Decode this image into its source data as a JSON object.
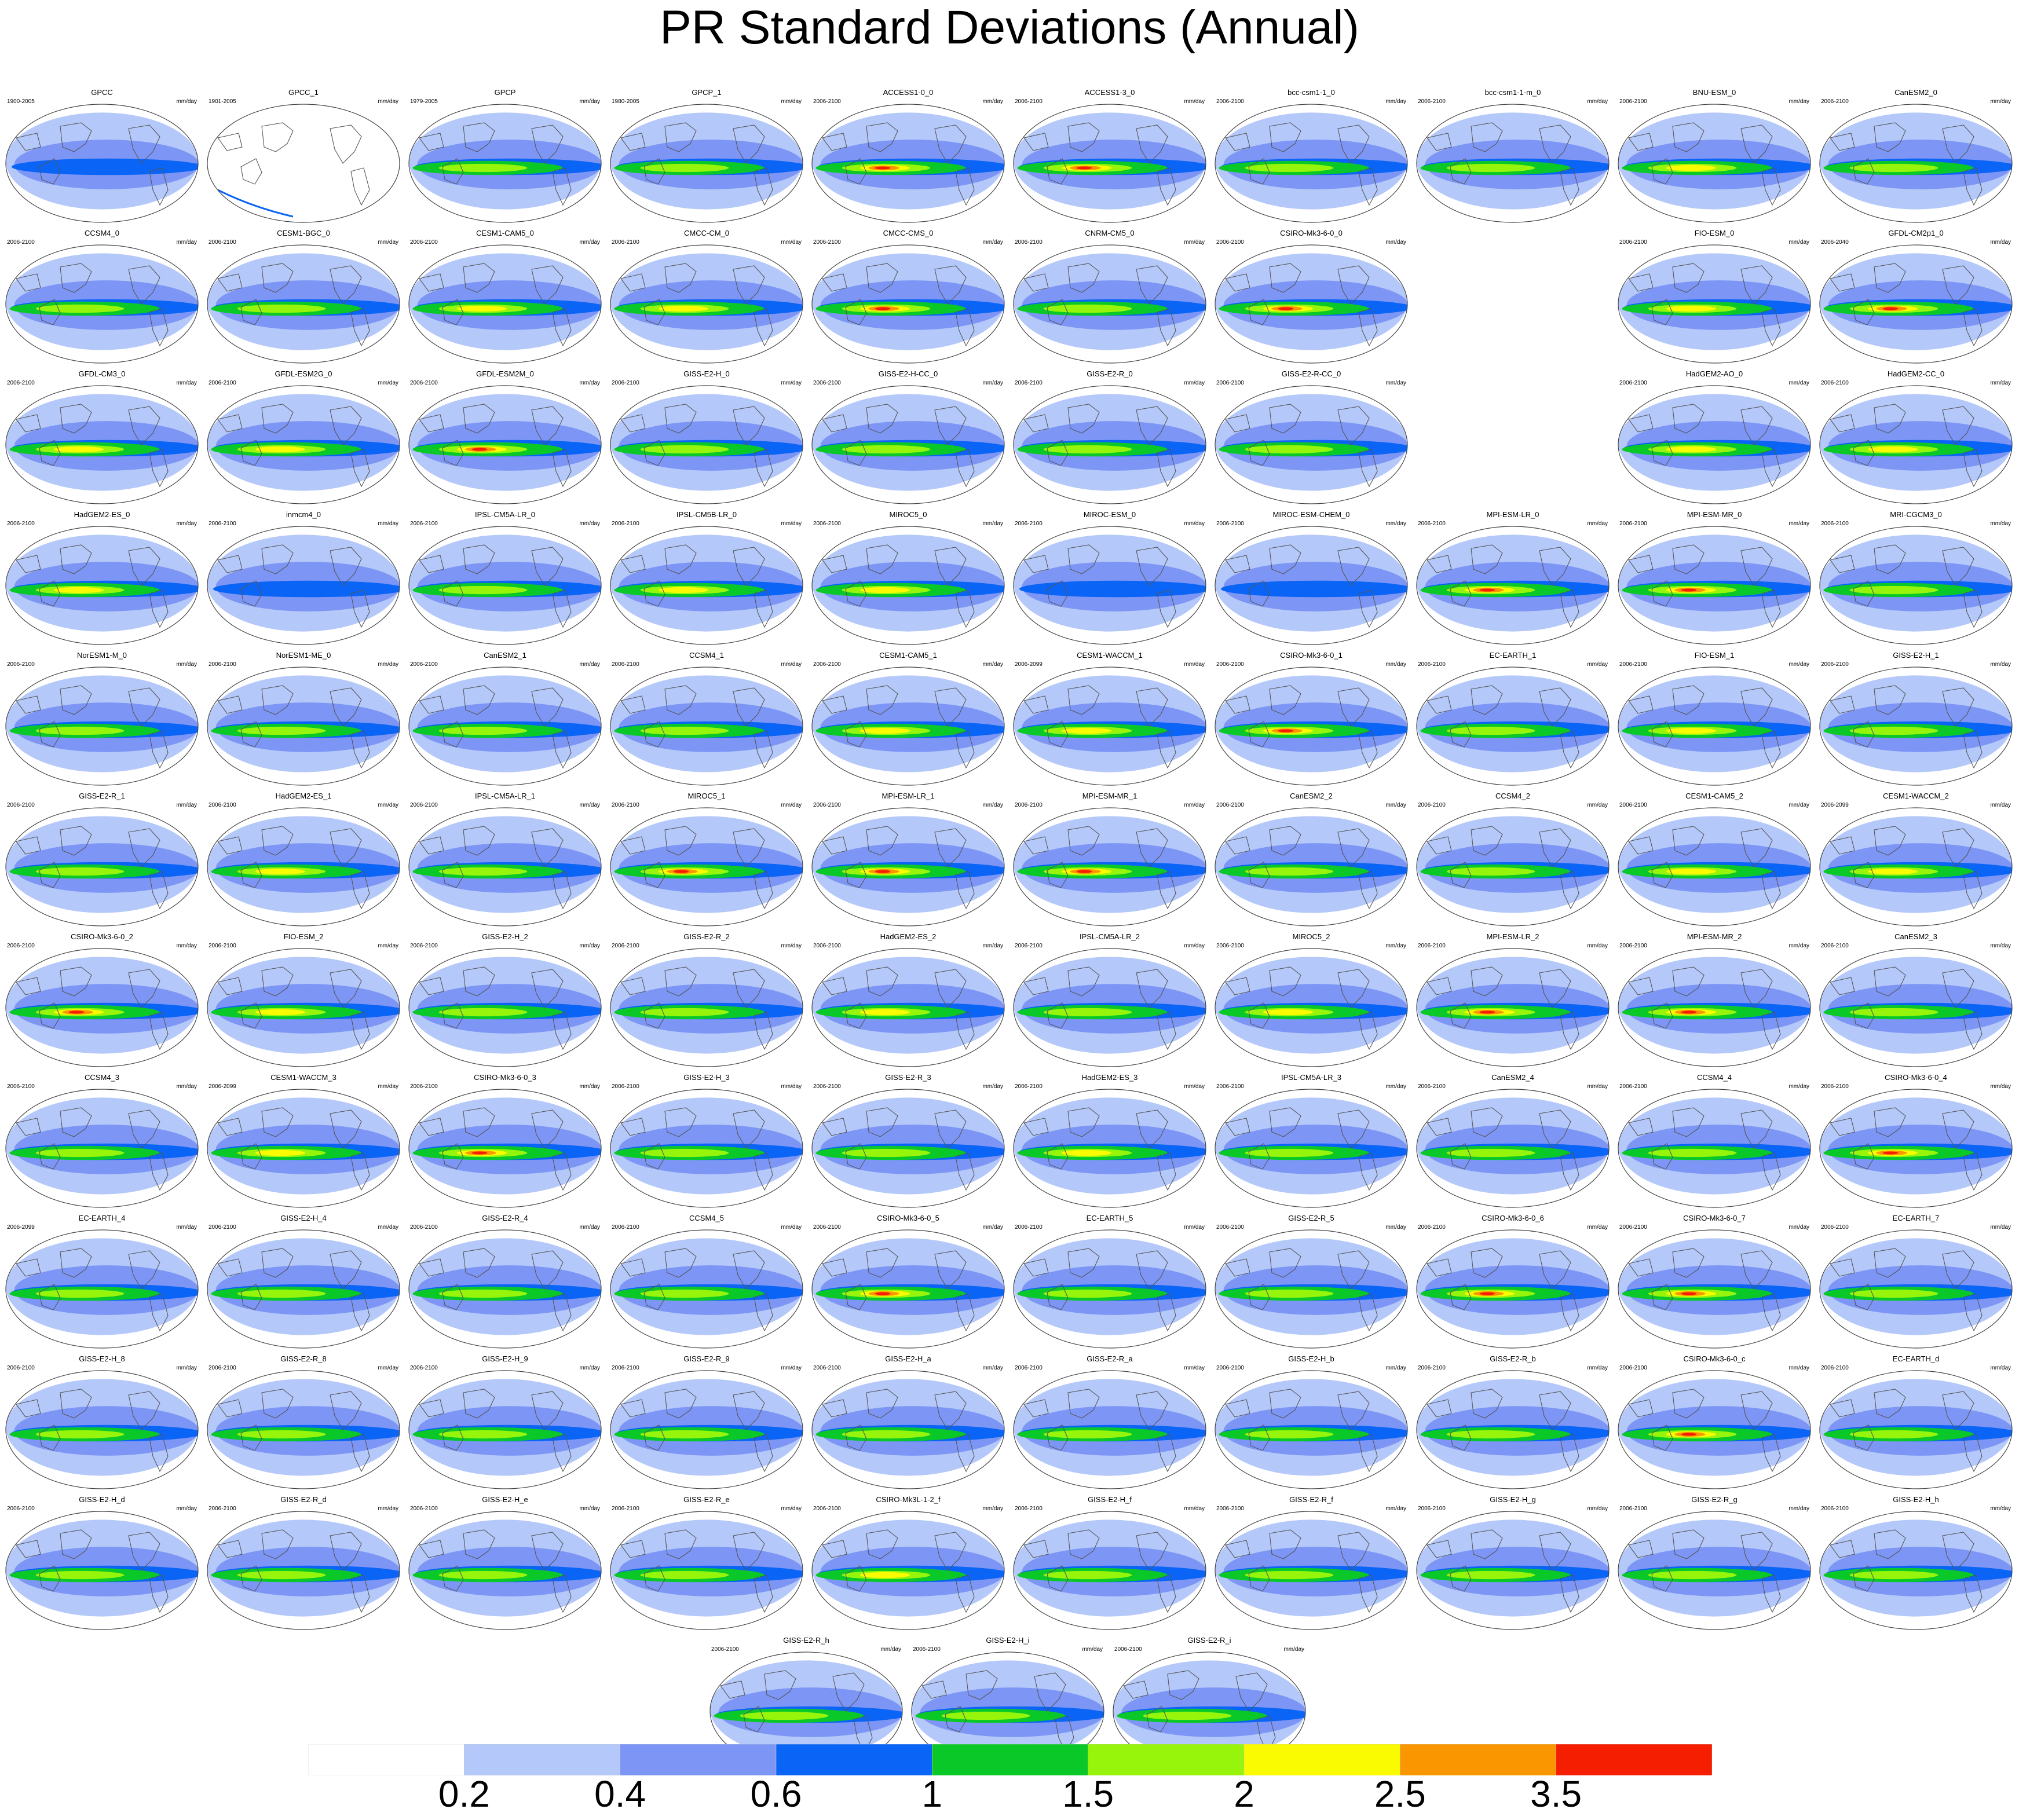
{
  "title": "PR Standard Deviations (Annual)",
  "chart_data": {
    "type": "heatmap",
    "title": "PR Standard Deviations (Annual)",
    "projection": "global robinson-style map panels centered on the Pacific",
    "units": "mm/day",
    "grid": false,
    "colorbar": {
      "orientation": "horizontal",
      "placement": "bottom",
      "tick_labels": [
        "0.2",
        "0.4",
        "0.6",
        "1",
        "1.5",
        "2",
        "2.5",
        "3.5"
      ],
      "colors": [
        "#ffffff",
        "#b4c8fa",
        "#7d96f5",
        "#0a64f5",
        "#0ac828",
        "#96f50a",
        "#fafa00",
        "#fa9600",
        "#f51e00"
      ]
    },
    "panels": [
      {
        "name": "GPCC",
        "period": "1900-2005",
        "unit": "mm/day",
        "peak": 1
      },
      {
        "name": "GPCC_1",
        "period": "1901-2005",
        "unit": "mm/day",
        "peak": 0
      },
      {
        "name": "GPCP",
        "period": "1979-2005",
        "unit": "mm/day",
        "peak": 2
      },
      {
        "name": "GPCP_1",
        "period": "1980-2005",
        "unit": "mm/day",
        "peak": 2
      },
      {
        "name": "ACCESS1-0_0",
        "period": "2006-2100",
        "unit": "mm/day",
        "peak": 4
      },
      {
        "name": "ACCESS1-3_0",
        "period": "2006-2100",
        "unit": "mm/day",
        "peak": 4
      },
      {
        "name": "bcc-csm1-1_0",
        "period": "2006-2100",
        "unit": "mm/day",
        "peak": 2
      },
      {
        "name": "bcc-csm1-1-m_0",
        "period": "2006-2100",
        "unit": "mm/day",
        "peak": 2
      },
      {
        "name": "BNU-ESM_0",
        "period": "2006-2100",
        "unit": "mm/day",
        "peak": 3
      },
      {
        "name": "CanESM2_0",
        "period": "2006-2100",
        "unit": "mm/day",
        "peak": 2
      },
      {
        "name": "CCSM4_0",
        "period": "2006-2100",
        "unit": "mm/day",
        "peak": 2
      },
      {
        "name": "CESM1-BGC_0",
        "period": "2006-2100",
        "unit": "mm/day",
        "peak": 2
      },
      {
        "name": "CESM1-CAM5_0",
        "period": "2006-2100",
        "unit": "mm/day",
        "peak": 3
      },
      {
        "name": "CMCC-CM_0",
        "period": "2006-2100",
        "unit": "mm/day",
        "peak": 3
      },
      {
        "name": "CMCC-CMS_0",
        "period": "2006-2100",
        "unit": "mm/day",
        "peak": 4
      },
      {
        "name": "CNRM-CM5_0",
        "period": "2006-2100",
        "unit": "mm/day",
        "peak": 2
      },
      {
        "name": "CSIRO-Mk3-6-0_0",
        "period": "2006-2100",
        "unit": "mm/day",
        "peak": 4
      },
      null,
      {
        "name": "FIO-ESM_0",
        "period": "2006-2100",
        "unit": "mm/day",
        "peak": 3
      },
      {
        "name": "GFDL-CM2p1_0",
        "period": "2006-2040",
        "unit": "mm/day",
        "peak": 4
      },
      {
        "name": "GFDL-CM3_0",
        "period": "2006-2100",
        "unit": "mm/day",
        "peak": 3
      },
      {
        "name": "GFDL-ESM2G_0",
        "period": "2006-2100",
        "unit": "mm/day",
        "peak": 3
      },
      {
        "name": "GFDL-ESM2M_0",
        "period": "2006-2100",
        "unit": "mm/day",
        "peak": 4
      },
      {
        "name": "GISS-E2-H_0",
        "period": "2006-2100",
        "unit": "mm/day",
        "peak": 2
      },
      {
        "name": "GISS-E2-H-CC_0",
        "period": "2006-2100",
        "unit": "mm/day",
        "peak": 2
      },
      {
        "name": "GISS-E2-R_0",
        "period": "2006-2100",
        "unit": "mm/day",
        "peak": 2
      },
      {
        "name": "GISS-E2-R-CC_0",
        "period": "2006-2100",
        "unit": "mm/day",
        "peak": 2
      },
      null,
      {
        "name": "HadGEM2-AO_0",
        "period": "2006-2100",
        "unit": "mm/day",
        "peak": 3
      },
      {
        "name": "HadGEM2-CC_0",
        "period": "2006-2100",
        "unit": "mm/day",
        "peak": 3
      },
      {
        "name": "HadGEM2-ES_0",
        "period": "2006-2100",
        "unit": "mm/day",
        "peak": 3
      },
      {
        "name": "inmcm4_0",
        "period": "2006-2100",
        "unit": "mm/day",
        "peak": 1
      },
      {
        "name": "IPSL-CM5A-LR_0",
        "period": "2006-2100",
        "unit": "mm/day",
        "peak": 2
      },
      {
        "name": "IPSL-CM5B-LR_0",
        "period": "2006-2100",
        "unit": "mm/day",
        "peak": 3
      },
      {
        "name": "MIROC5_0",
        "period": "2006-2100",
        "unit": "mm/day",
        "peak": 3
      },
      {
        "name": "MIROC-ESM_0",
        "period": "2006-2100",
        "unit": "mm/day",
        "peak": 1
      },
      {
        "name": "MIROC-ESM-CHEM_0",
        "period": "2006-2100",
        "unit": "mm/day",
        "peak": 1
      },
      {
        "name": "MPI-ESM-LR_0",
        "period": "2006-2100",
        "unit": "mm/day",
        "peak": 4
      },
      {
        "name": "MPI-ESM-MR_0",
        "period": "2006-2100",
        "unit": "mm/day",
        "peak": 4
      },
      {
        "name": "MRI-CGCM3_0",
        "period": "2006-2100",
        "unit": "mm/day",
        "peak": 2
      },
      {
        "name": "NorESM1-M_0",
        "period": "2006-2100",
        "unit": "mm/day",
        "peak": 2
      },
      {
        "name": "NorESM1-ME_0",
        "period": "2006-2100",
        "unit": "mm/day",
        "peak": 2
      },
      {
        "name": "CanESM2_1",
        "period": "2006-2100",
        "unit": "mm/day",
        "peak": 2
      },
      {
        "name": "CCSM4_1",
        "period": "2006-2100",
        "unit": "mm/day",
        "peak": 2
      },
      {
        "name": "CESM1-CAM5_1",
        "period": "2006-2100",
        "unit": "mm/day",
        "peak": 3
      },
      {
        "name": "CESM1-WACCM_1",
        "period": "2006-2099",
        "unit": "mm/day",
        "peak": 3
      },
      {
        "name": "CSIRO-Mk3-6-0_1",
        "period": "2006-2100",
        "unit": "mm/day",
        "peak": 4
      },
      {
        "name": "EC-EARTH_1",
        "period": "2006-2100",
        "unit": "mm/day",
        "peak": 2
      },
      {
        "name": "FIO-ESM_1",
        "period": "2006-2100",
        "unit": "mm/day",
        "peak": 3
      },
      {
        "name": "GISS-E2-H_1",
        "period": "2006-2100",
        "unit": "mm/day",
        "peak": 2
      },
      {
        "name": "GISS-E2-R_1",
        "period": "2006-2100",
        "unit": "mm/day",
        "peak": 2
      },
      {
        "name": "HadGEM2-ES_1",
        "period": "2006-2100",
        "unit": "mm/day",
        "peak": 3
      },
      {
        "name": "IPSL-CM5A-LR_1",
        "period": "2006-2100",
        "unit": "mm/day",
        "peak": 2
      },
      {
        "name": "MIROC5_1",
        "period": "2006-2100",
        "unit": "mm/day",
        "peak": 4
      },
      {
        "name": "MPI-ESM-LR_1",
        "period": "2006-2100",
        "unit": "mm/day",
        "peak": 4
      },
      {
        "name": "MPI-ESM-MR_1",
        "period": "2006-2100",
        "unit": "mm/day",
        "peak": 4
      },
      {
        "name": "CanESM2_2",
        "period": "2006-2100",
        "unit": "mm/day",
        "peak": 2
      },
      {
        "name": "CCSM4_2",
        "period": "2006-2100",
        "unit": "mm/day",
        "peak": 2
      },
      {
        "name": "CESM1-CAM5_2",
        "period": "2006-2100",
        "unit": "mm/day",
        "peak": 3
      },
      {
        "name": "CESM1-WACCM_2",
        "period": "2006-2099",
        "unit": "mm/day",
        "peak": 3
      },
      {
        "name": "CSIRO-Mk3-6-0_2",
        "period": "2006-2100",
        "unit": "mm/day",
        "peak": 4
      },
      {
        "name": "FIO-ESM_2",
        "period": "2006-2100",
        "unit": "mm/day",
        "peak": 3
      },
      {
        "name": "GISS-E2-H_2",
        "period": "2006-2100",
        "unit": "mm/day",
        "peak": 2
      },
      {
        "name": "GISS-E2-R_2",
        "period": "2006-2100",
        "unit": "mm/day",
        "peak": 2
      },
      {
        "name": "HadGEM2-ES_2",
        "period": "2006-2100",
        "unit": "mm/day",
        "peak": 3
      },
      {
        "name": "IPSL-CM5A-LR_2",
        "period": "2006-2100",
        "unit": "mm/day",
        "peak": 2
      },
      {
        "name": "MIROC5_2",
        "period": "2006-2100",
        "unit": "mm/day",
        "peak": 3
      },
      {
        "name": "MPI-ESM-LR_2",
        "period": "2006-2100",
        "unit": "mm/day",
        "peak": 4
      },
      {
        "name": "MPI-ESM-MR_2",
        "period": "2006-2100",
        "unit": "mm/day",
        "peak": 4
      },
      {
        "name": "CanESM2_3",
        "period": "2006-2100",
        "unit": "mm/day",
        "peak": 2
      },
      {
        "name": "CCSM4_3",
        "period": "2006-2100",
        "unit": "mm/day",
        "peak": 2
      },
      {
        "name": "CESM1-WACCM_3",
        "period": "2006-2099",
        "unit": "mm/day",
        "peak": 3
      },
      {
        "name": "CSIRO-Mk3-6-0_3",
        "period": "2006-2100",
        "unit": "mm/day",
        "peak": 4
      },
      {
        "name": "GISS-E2-H_3",
        "period": "2006-2100",
        "unit": "mm/day",
        "peak": 2
      },
      {
        "name": "GISS-E2-R_3",
        "period": "2006-2100",
        "unit": "mm/day",
        "peak": 2
      },
      {
        "name": "HadGEM2-ES_3",
        "period": "2006-2100",
        "unit": "mm/day",
        "peak": 3
      },
      {
        "name": "IPSL-CM5A-LR_3",
        "period": "2006-2100",
        "unit": "mm/day",
        "peak": 2
      },
      {
        "name": "CanESM2_4",
        "period": "2006-2100",
        "unit": "mm/day",
        "peak": 2
      },
      {
        "name": "CCSM4_4",
        "period": "2006-2100",
        "unit": "mm/day",
        "peak": 2
      },
      {
        "name": "CSIRO-Mk3-6-0_4",
        "period": "2006-2100",
        "unit": "mm/day",
        "peak": 4
      },
      {
        "name": "EC-EARTH_4",
        "period": "2006-2099",
        "unit": "mm/day",
        "peak": 2
      },
      {
        "name": "GISS-E2-H_4",
        "period": "2006-2100",
        "unit": "mm/day",
        "peak": 2
      },
      {
        "name": "GISS-E2-R_4",
        "period": "2006-2100",
        "unit": "mm/day",
        "peak": 2
      },
      {
        "name": "CCSM4_5",
        "period": "2006-2100",
        "unit": "mm/day",
        "peak": 2
      },
      {
        "name": "CSIRO-Mk3-6-0_5",
        "period": "2006-2100",
        "unit": "mm/day",
        "peak": 4
      },
      {
        "name": "EC-EARTH_5",
        "period": "2006-2100",
        "unit": "mm/day",
        "peak": 2
      },
      {
        "name": "GISS-E2-R_5",
        "period": "2006-2100",
        "unit": "mm/day",
        "peak": 2
      },
      {
        "name": "CSIRO-Mk3-6-0_6",
        "period": "2006-2100",
        "unit": "mm/day",
        "peak": 4
      },
      {
        "name": "CSIRO-Mk3-6-0_7",
        "period": "2006-2100",
        "unit": "mm/day",
        "peak": 4
      },
      {
        "name": "EC-EARTH_7",
        "period": "2006-2100",
        "unit": "mm/day",
        "peak": 2
      },
      {
        "name": "GISS-E2-H_8",
        "period": "2006-2100",
        "unit": "mm/day",
        "peak": 2
      },
      {
        "name": "GISS-E2-R_8",
        "period": "2006-2100",
        "unit": "mm/day",
        "peak": 2
      },
      {
        "name": "GISS-E2-H_9",
        "period": "2006-2100",
        "unit": "mm/day",
        "peak": 2
      },
      {
        "name": "GISS-E2-R_9",
        "period": "2006-2100",
        "unit": "mm/day",
        "peak": 2
      },
      {
        "name": "GISS-E2-H_a",
        "period": "2006-2100",
        "unit": "mm/day",
        "peak": 2
      },
      {
        "name": "GISS-E2-R_a",
        "period": "2006-2100",
        "unit": "mm/day",
        "peak": 2
      },
      {
        "name": "GISS-E2-H_b",
        "period": "2006-2100",
        "unit": "mm/day",
        "peak": 2
      },
      {
        "name": "GISS-E2-R_b",
        "period": "2006-2100",
        "unit": "mm/day",
        "peak": 2
      },
      {
        "name": "CSIRO-Mk3-6-0_c",
        "period": "2006-2100",
        "unit": "mm/day",
        "peak": 4
      },
      {
        "name": "EC-EARTH_d",
        "period": "2006-2100",
        "unit": "mm/day",
        "peak": 2
      },
      {
        "name": "GISS-E2-H_d",
        "period": "2006-2100",
        "unit": "mm/day",
        "peak": 2
      },
      {
        "name": "GISS-E2-R_d",
        "period": "2006-2100",
        "unit": "mm/day",
        "peak": 2
      },
      {
        "name": "GISS-E2-H_e",
        "period": "2006-2100",
        "unit": "mm/day",
        "peak": 2
      },
      {
        "name": "GISS-E2-R_e",
        "period": "2006-2100",
        "unit": "mm/day",
        "peak": 2
      },
      {
        "name": "CSIRO-Mk3L-1-2_f",
        "period": "2006-2100",
        "unit": "mm/day",
        "peak": 3
      },
      {
        "name": "GISS-E2-H_f",
        "period": "2006-2100",
        "unit": "mm/day",
        "peak": 2
      },
      {
        "name": "GISS-E2-R_f",
        "period": "2006-2100",
        "unit": "mm/day",
        "peak": 2
      },
      {
        "name": "GISS-E2-H_g",
        "period": "2006-2100",
        "unit": "mm/day",
        "peak": 2
      },
      {
        "name": "GISS-E2-R_g",
        "period": "2006-2100",
        "unit": "mm/day",
        "peak": 2
      },
      {
        "name": "GISS-E2-H_h",
        "period": "2006-2100",
        "unit": "mm/day",
        "peak": 2
      },
      {
        "name": "GISS-E2-R_h",
        "period": "2006-2100",
        "unit": "mm/day",
        "peak": 2
      },
      {
        "name": "GISS-E2-H_i",
        "period": "2006-2100",
        "unit": "mm/day",
        "peak": 2
      },
      {
        "name": "GISS-E2-R_i",
        "period": "2006-2100",
        "unit": "mm/day",
        "peak": 2
      }
    ]
  }
}
